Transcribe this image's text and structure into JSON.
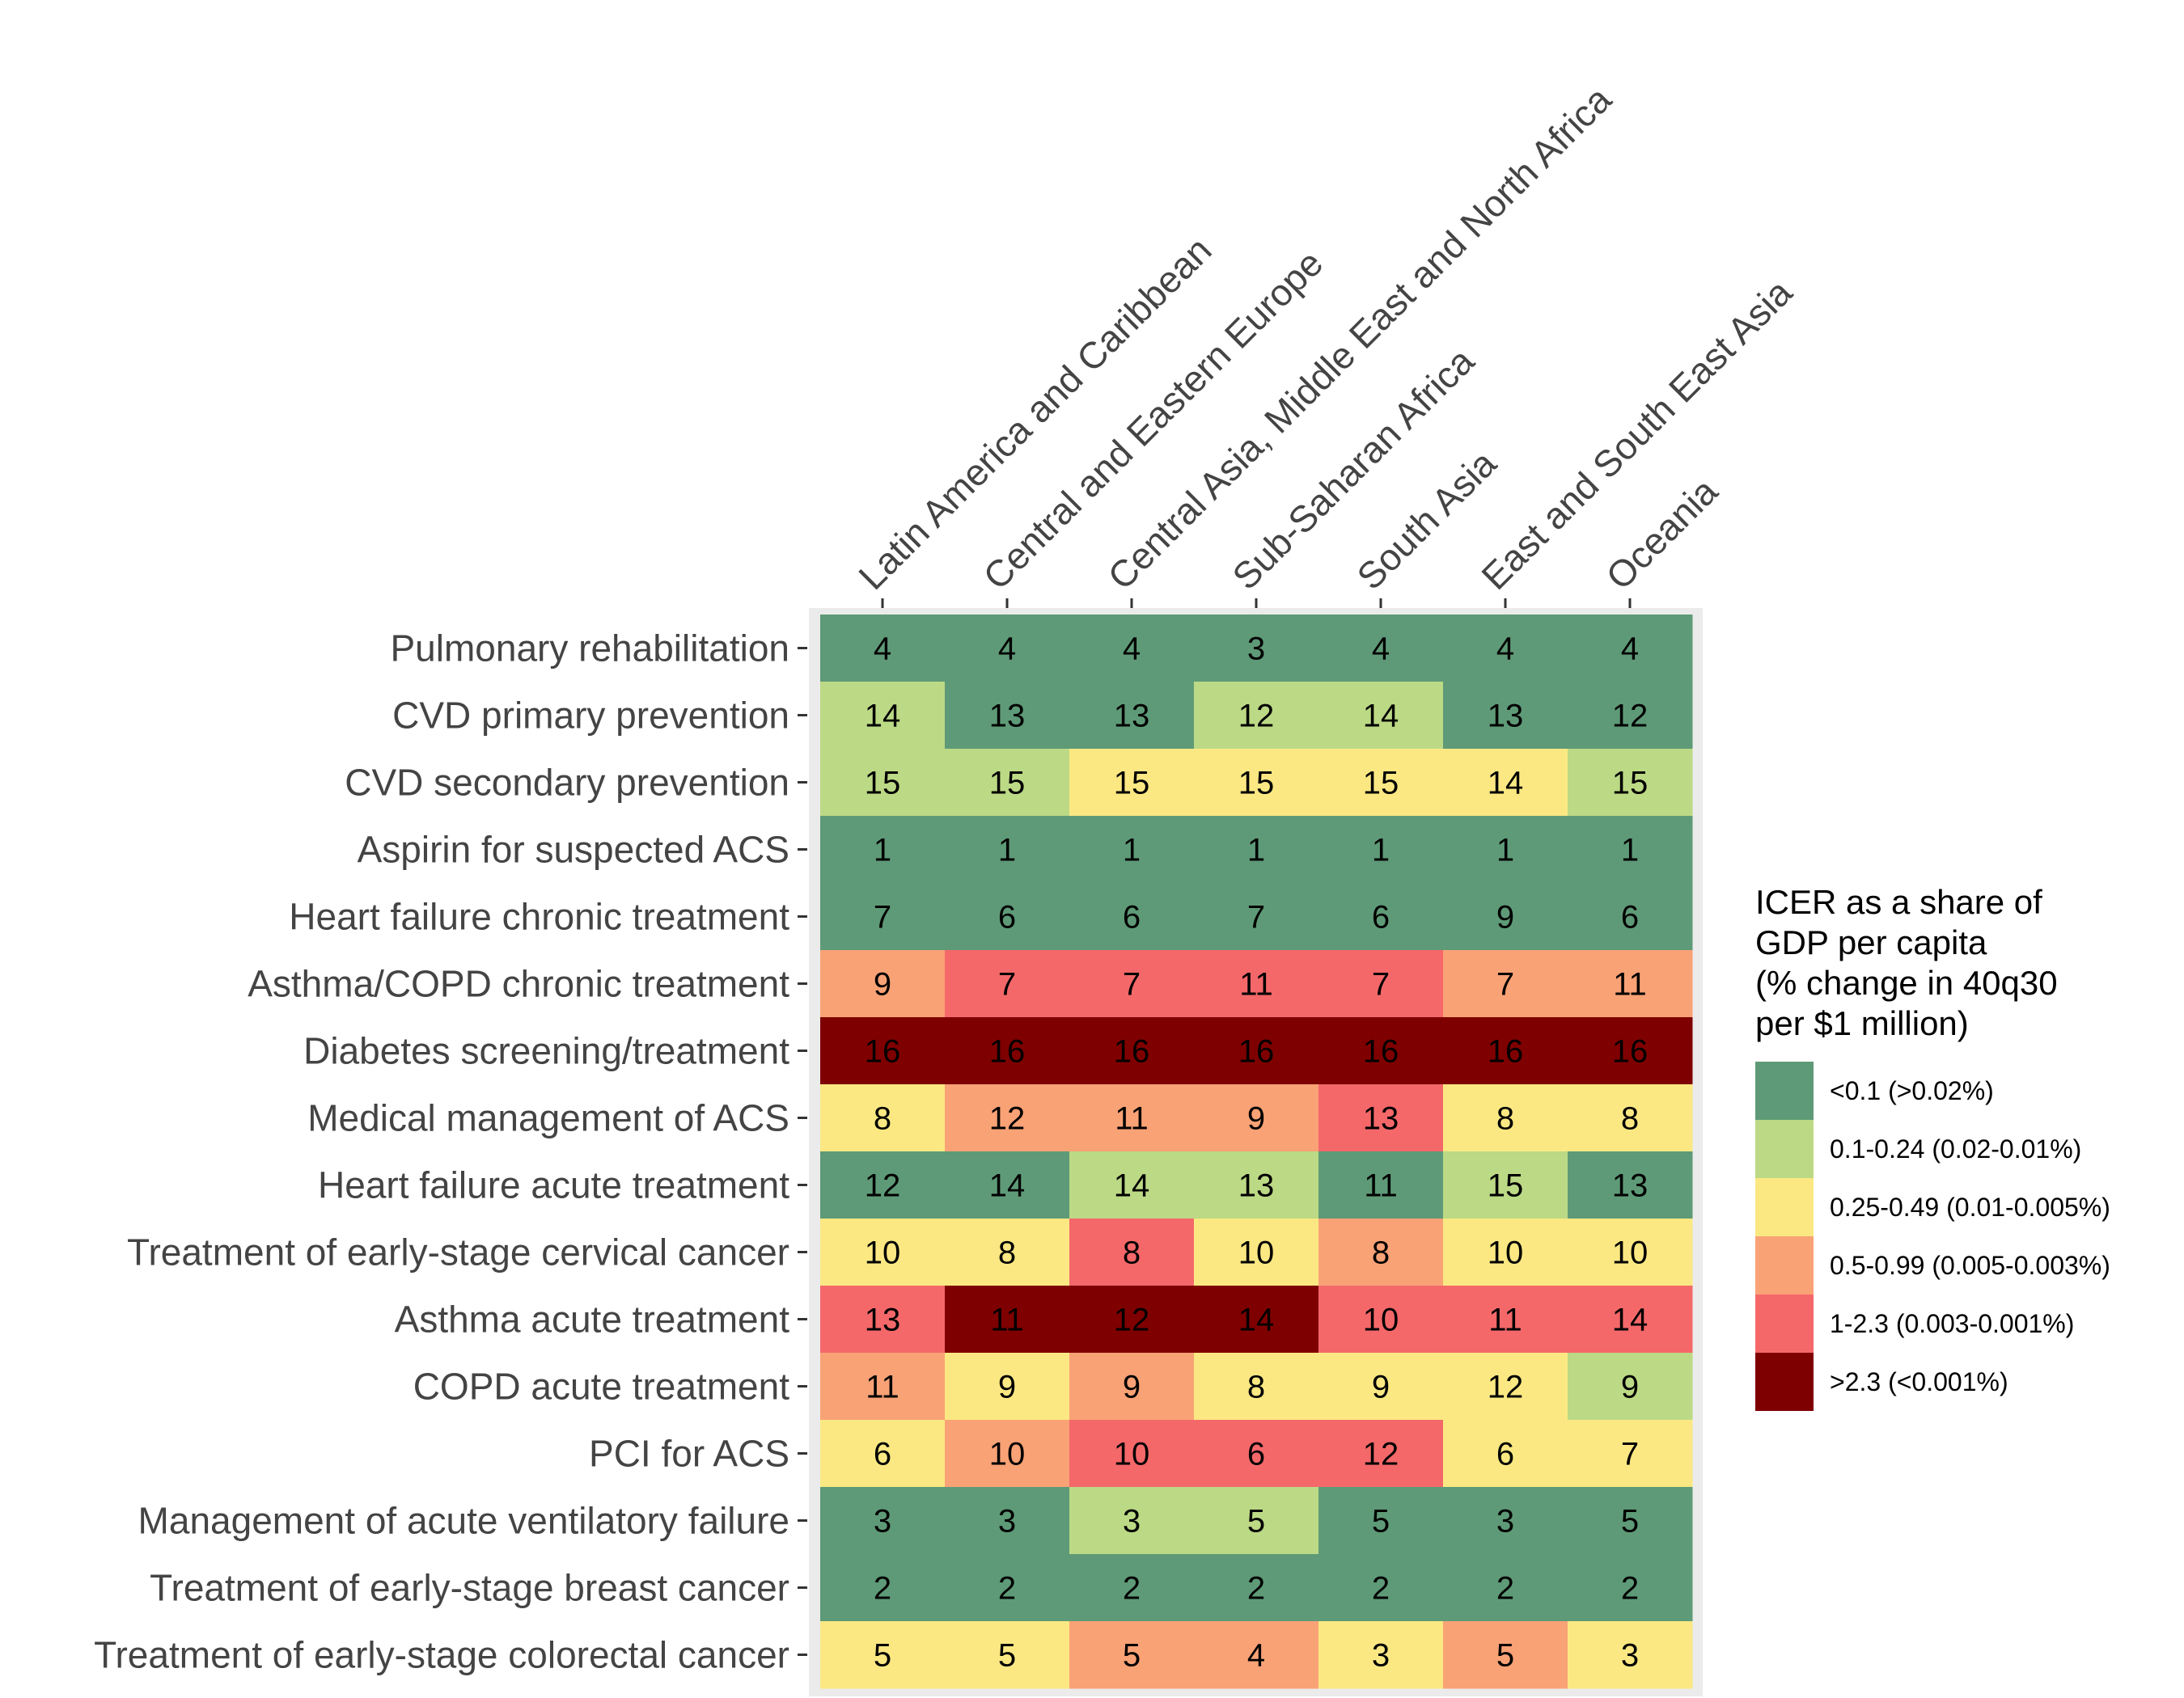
{
  "chart_data": {
    "type": "heatmap",
    "title": "",
    "xlabel": "",
    "ylabel": "",
    "columns": [
      "Latin America and Caribbean",
      "Central and Eastern Europe",
      "Central Asia, Middle East and North Africa",
      "Sub-Saharan Africa",
      "South Asia",
      "East and South East Asia",
      "Oceania"
    ],
    "rows": [
      "Pulmonary rehabilitation",
      "CVD primary prevention",
      "CVD secondary prevention",
      "Aspirin for suspected ACS",
      "Heart failure chronic treatment",
      "Asthma/COPD chronic treatment",
      "Diabetes screening/treatment",
      "Medical management of ACS",
      "Heart failure acute treatment",
      "Treatment of early-stage cervical cancer",
      "Asthma acute treatment",
      "COPD acute treatment",
      "PCI for ACS",
      "Management of acute ventilatory failure",
      "Treatment of early-stage breast cancer",
      "Treatment of early-stage colorectal cancer"
    ],
    "ranks": [
      [
        4,
        4,
        4,
        3,
        4,
        4,
        4
      ],
      [
        14,
        13,
        13,
        12,
        14,
        13,
        12
      ],
      [
        15,
        15,
        15,
        15,
        15,
        14,
        15
      ],
      [
        1,
        1,
        1,
        1,
        1,
        1,
        1
      ],
      [
        7,
        6,
        6,
        7,
        6,
        9,
        6
      ],
      [
        9,
        7,
        7,
        11,
        7,
        7,
        11
      ],
      [
        16,
        16,
        16,
        16,
        16,
        16,
        16
      ],
      [
        8,
        12,
        11,
        9,
        13,
        8,
        8
      ],
      [
        12,
        14,
        14,
        13,
        11,
        15,
        13
      ],
      [
        10,
        8,
        8,
        10,
        8,
        10,
        10
      ],
      [
        13,
        11,
        12,
        14,
        10,
        11,
        14
      ],
      [
        11,
        9,
        9,
        8,
        9,
        12,
        9
      ],
      [
        6,
        10,
        10,
        6,
        12,
        6,
        7
      ],
      [
        3,
        3,
        3,
        5,
        5,
        3,
        5
      ],
      [
        2,
        2,
        2,
        2,
        2,
        2,
        2
      ],
      [
        5,
        5,
        5,
        4,
        3,
        5,
        3
      ]
    ],
    "categories": [
      [
        0,
        0,
        0,
        0,
        0,
        0,
        0
      ],
      [
        1,
        0,
        0,
        1,
        1,
        0,
        0
      ],
      [
        1,
        1,
        2,
        2,
        2,
        2,
        1
      ],
      [
        0,
        0,
        0,
        0,
        0,
        0,
        0
      ],
      [
        0,
        0,
        0,
        0,
        0,
        0,
        0
      ],
      [
        3,
        4,
        4,
        4,
        4,
        3,
        3
      ],
      [
        5,
        5,
        5,
        5,
        5,
        5,
        5
      ],
      [
        2,
        3,
        3,
        3,
        4,
        2,
        2
      ],
      [
        0,
        0,
        1,
        1,
        0,
        1,
        0
      ],
      [
        2,
        2,
        4,
        2,
        3,
        2,
        2
      ],
      [
        4,
        5,
        5,
        5,
        4,
        4,
        4
      ],
      [
        3,
        2,
        3,
        2,
        2,
        2,
        1
      ],
      [
        2,
        3,
        4,
        4,
        4,
        2,
        2
      ],
      [
        0,
        0,
        1,
        1,
        0,
        0,
        0
      ],
      [
        0,
        0,
        0,
        0,
        0,
        0,
        0
      ],
      [
        2,
        2,
        3,
        3,
        2,
        3,
        2
      ]
    ],
    "legend": {
      "title_lines": [
        "ICER as a share of",
        "GDP per capita",
        "(% change in 40q30",
        "per $1 million)"
      ],
      "position": "right",
      "entries": [
        {
          "label": "<0.1 (>0.02%)",
          "color": "#5e9a77"
        },
        {
          "label": "0.1-0.24 (0.02-0.01%)",
          "color": "#bcd985"
        },
        {
          "label": "0.25-0.49 (0.01-0.005%)",
          "color": "#fbe883"
        },
        {
          "label": "0.5-0.99 (0.005-0.003%)",
          "color": "#f9a276"
        },
        {
          "label": "1-2.3 (0.003-0.001%)",
          "color": "#f4686a"
        },
        {
          "label": ">2.3 (<0.001%)",
          "color": "#7f0000"
        }
      ]
    },
    "panel_background": "#ebebeb",
    "grid": true
  }
}
